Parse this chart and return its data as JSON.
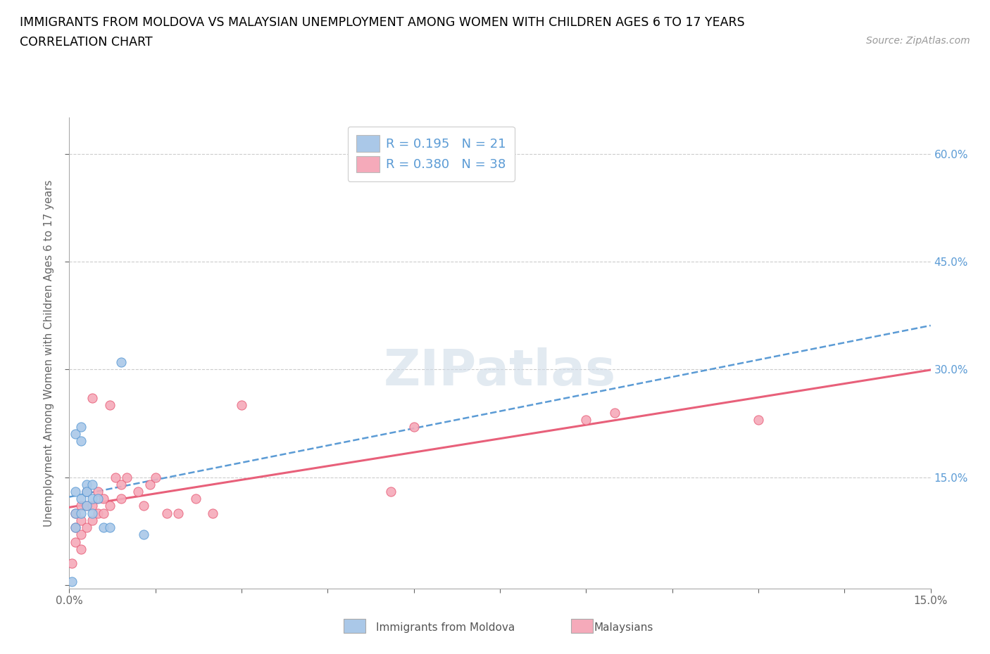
{
  "title_line1": "IMMIGRANTS FROM MOLDOVA VS MALAYSIAN UNEMPLOYMENT AMONG WOMEN WITH CHILDREN AGES 6 TO 17 YEARS",
  "title_line2": "CORRELATION CHART",
  "source_text": "Source: ZipAtlas.com",
  "ylabel": "Unemployment Among Women with Children Ages 6 to 17 years",
  "xlim": [
    0.0,
    0.15
  ],
  "ylim": [
    -0.005,
    0.65
  ],
  "x_ticks": [
    0.0,
    0.015,
    0.03,
    0.045,
    0.06,
    0.075,
    0.09,
    0.105,
    0.12,
    0.135,
    0.15
  ],
  "x_tick_labels": [
    "0.0%",
    "",
    "",
    "",
    "",
    "",
    "",
    "",
    "",
    "",
    "15.0%"
  ],
  "y_ticks": [
    0.0,
    0.15,
    0.3,
    0.45,
    0.6
  ],
  "y_tick_labels_right": [
    "",
    "15.0%",
    "30.0%",
    "45.0%",
    "60.0%"
  ],
  "color_moldova": "#aac8e8",
  "color_malaysia": "#f5aaba",
  "color_line_moldova": "#5b9bd5",
  "color_line_malaysia": "#e8607a",
  "R_moldova": 0.195,
  "N_moldova": 21,
  "R_malaysia": 0.38,
  "N_malaysia": 38,
  "watermark_text": "ZIPatlas",
  "moldova_x": [
    0.0005,
    0.001,
    0.001,
    0.001,
    0.001,
    0.002,
    0.002,
    0.002,
    0.002,
    0.003,
    0.003,
    0.003,
    0.003,
    0.004,
    0.004,
    0.004,
    0.005,
    0.006,
    0.007,
    0.009,
    0.013
  ],
  "moldova_y": [
    0.005,
    0.1,
    0.08,
    0.13,
    0.21,
    0.1,
    0.12,
    0.2,
    0.22,
    0.11,
    0.13,
    0.14,
    0.13,
    0.1,
    0.12,
    0.14,
    0.12,
    0.08,
    0.08,
    0.31,
    0.07
  ],
  "malaysia_x": [
    0.0005,
    0.001,
    0.001,
    0.001,
    0.002,
    0.002,
    0.002,
    0.002,
    0.003,
    0.003,
    0.003,
    0.004,
    0.004,
    0.004,
    0.005,
    0.005,
    0.006,
    0.006,
    0.007,
    0.007,
    0.008,
    0.009,
    0.009,
    0.01,
    0.012,
    0.013,
    0.014,
    0.015,
    0.017,
    0.019,
    0.022,
    0.025,
    0.03,
    0.056,
    0.06,
    0.09,
    0.095,
    0.12
  ],
  "malaysia_y": [
    0.03,
    0.06,
    0.08,
    0.1,
    0.05,
    0.07,
    0.09,
    0.11,
    0.08,
    0.11,
    0.13,
    0.09,
    0.11,
    0.26,
    0.1,
    0.13,
    0.1,
    0.12,
    0.11,
    0.25,
    0.15,
    0.12,
    0.14,
    0.15,
    0.13,
    0.11,
    0.14,
    0.15,
    0.1,
    0.1,
    0.12,
    0.1,
    0.25,
    0.13,
    0.22,
    0.23,
    0.24,
    0.23
  ]
}
